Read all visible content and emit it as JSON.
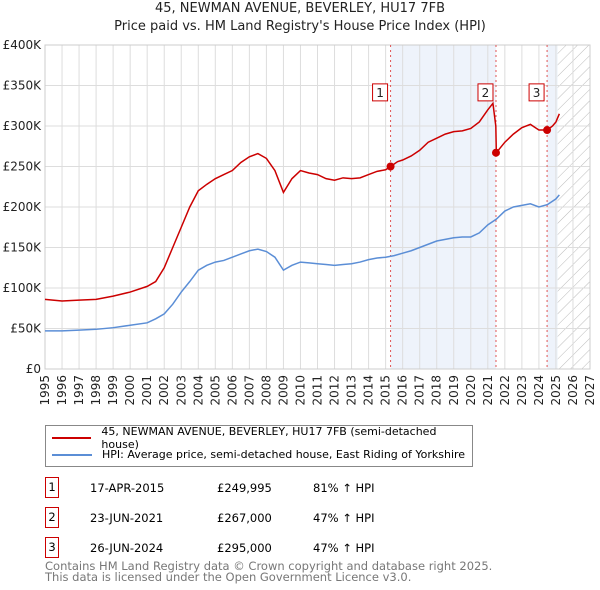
{
  "title": "45, NEWMAN AVENUE, BEVERLEY, HU17 7FB",
  "subtitle": "Price paid vs. HM Land Registry's House Price Index (HPI)",
  "chart_data": {
    "type": "line",
    "xlim": [
      1995,
      2027
    ],
    "ylim": [
      0,
      400000
    ],
    "x_ticks": [
      "1995",
      "1996",
      "1997",
      "1998",
      "1999",
      "2000",
      "2001",
      "2002",
      "2003",
      "2004",
      "2005",
      "2006",
      "2007",
      "2008",
      "2009",
      "2010",
      "2011",
      "2012",
      "2013",
      "2014",
      "2015",
      "2016",
      "2017",
      "2018",
      "2019",
      "2020",
      "2021",
      "2022",
      "2023",
      "2024",
      "2025",
      "2026",
      "2027"
    ],
    "y_ticks": [
      {
        "v": 0,
        "l": "£0"
      },
      {
        "v": 50000,
        "l": "£50K"
      },
      {
        "v": 100000,
        "l": "£100K"
      },
      {
        "v": 150000,
        "l": "£150K"
      },
      {
        "v": 200000,
        "l": "£200K"
      },
      {
        "v": 250000,
        "l": "£250K"
      },
      {
        "v": 300000,
        "l": "£300K"
      },
      {
        "v": 350000,
        "l": "£350K"
      },
      {
        "v": 400000,
        "l": "£400K"
      }
    ],
    "series": [
      {
        "name": "45, NEWMAN AVENUE, BEVERLEY, HU17 7FB (semi-detached house)",
        "color": "#cc0000",
        "x": [
          1995,
          1996,
          1997,
          1998,
          1999,
          2000,
          2001,
          2001.5,
          2002,
          2002.5,
          2003,
          2003.5,
          2004,
          2004.5,
          2005,
          2005.5,
          2006,
          2006.5,
          2007,
          2007.5,
          2008,
          2008.5,
          2009,
          2009.5,
          2010,
          2010.5,
          2011,
          2011.5,
          2012,
          2012.5,
          2013,
          2013.5,
          2014,
          2014.5,
          2015,
          2015.29,
          2015.7,
          2016,
          2016.5,
          2017,
          2017.5,
          2018,
          2018.5,
          2019,
          2019.5,
          2020,
          2020.5,
          2021,
          2021.3,
          2021.47,
          2021.5,
          2022,
          2022.5,
          2023,
          2023.5,
          2024,
          2024.48,
          2024.8,
          2025,
          2025.2
        ],
        "y": [
          86000,
          84000,
          85000,
          86000,
          90000,
          95000,
          102000,
          108000,
          125000,
          150000,
          175000,
          200000,
          220000,
          228000,
          235000,
          240000,
          245000,
          255000,
          262000,
          266000,
          260000,
          245000,
          218000,
          235000,
          245000,
          242000,
          240000,
          235000,
          233000,
          236000,
          235000,
          236000,
          240000,
          244000,
          246000,
          249995,
          256000,
          258000,
          263000,
          270000,
          280000,
          285000,
          290000,
          293000,
          294000,
          297000,
          305000,
          320000,
          328000,
          300000,
          267000,
          280000,
          290000,
          298000,
          302000,
          295000,
          295000,
          300000,
          305000,
          315000
        ]
      },
      {
        "name": "HPI: Average price, semi-detached house, East Riding of Yorkshire",
        "color": "#5b8ed6",
        "x": [
          1995,
          1996,
          1997,
          1998,
          1999,
          2000,
          2001,
          2001.5,
          2002,
          2002.5,
          2003,
          2003.5,
          2004,
          2004.5,
          2005,
          2005.5,
          2006,
          2006.5,
          2007,
          2007.5,
          2008,
          2008.5,
          2009,
          2009.5,
          2010,
          2010.5,
          2011,
          2011.5,
          2012,
          2012.5,
          2013,
          2013.5,
          2014,
          2014.5,
          2015,
          2015.5,
          2016,
          2016.5,
          2017,
          2017.5,
          2018,
          2018.5,
          2019,
          2019.5,
          2020,
          2020.5,
          2021,
          2021.5,
          2022,
          2022.5,
          2023,
          2023.5,
          2024,
          2024.5,
          2025,
          2025.2
        ],
        "y": [
          47000,
          47000,
          48000,
          49000,
          51000,
          54000,
          57000,
          62000,
          68000,
          80000,
          95000,
          108000,
          122000,
          128000,
          132000,
          134000,
          138000,
          142000,
          146000,
          148000,
          145000,
          138000,
          122000,
          128000,
          132000,
          131000,
          130000,
          129000,
          128000,
          129000,
          130000,
          132000,
          135000,
          137000,
          138000,
          140000,
          143000,
          146000,
          150000,
          154000,
          158000,
          160000,
          162000,
          163000,
          163000,
          168000,
          178000,
          185000,
          195000,
          200000,
          202000,
          204000,
          200000,
          203000,
          210000,
          215000
        ]
      }
    ],
    "sales": [
      {
        "label": "1",
        "x": 2015.29,
        "y": 249995,
        "date": "17-APR-2015",
        "price": "£249,995",
        "hpi": "81% ↑ HPI"
      },
      {
        "label": "2",
        "x": 2021.48,
        "y": 267000,
        "date": "23-JUN-2021",
        "price": "£267,000",
        "hpi": "47% ↑ HPI"
      },
      {
        "label": "3",
        "x": 2024.48,
        "y": 295000,
        "date": "26-JUN-2024",
        "price": "£295,000",
        "hpi": "47% ↑ HPI"
      }
    ],
    "projection_from": 2025.1
  },
  "footer": [
    "Contains HM Land Registry data © Crown copyright and database right 2025.",
    "This data is licensed under the Open Government Licence v3.0."
  ]
}
